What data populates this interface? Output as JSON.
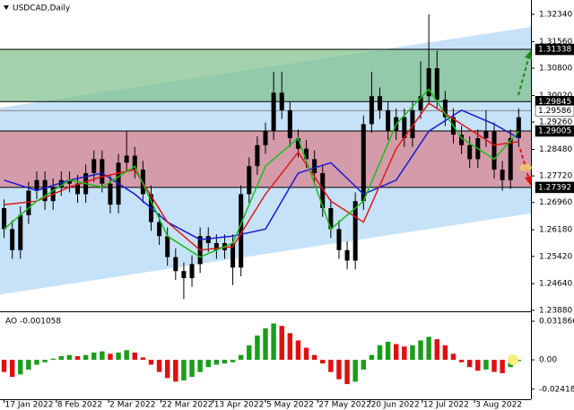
{
  "chart_data": [
    {
      "type": "candlestick",
      "title": "USDCAD,Daily",
      "x": [
        0,
        1,
        2,
        3,
        4,
        5,
        6,
        7,
        8,
        9,
        10,
        11,
        12,
        13,
        14,
        15,
        16,
        17,
        18,
        19,
        20,
        21,
        22,
        23,
        24,
        25,
        26,
        27,
        28,
        29,
        30,
        31,
        32,
        33,
        34,
        35,
        36,
        37,
        38,
        39,
        40,
        41,
        42,
        43,
        44,
        45,
        46,
        47,
        48,
        49,
        50,
        51,
        52,
        53,
        54,
        55,
        56,
        57,
        58,
        59,
        60,
        61,
        62,
        63
      ],
      "open": [
        1.268,
        1.262,
        1.256,
        1.266,
        1.273,
        1.276,
        1.27,
        1.274,
        1.276,
        1.275,
        1.272,
        1.278,
        1.282,
        1.275,
        1.269,
        1.281,
        1.283,
        1.279,
        1.272,
        1.264,
        1.26,
        1.254,
        1.25,
        1.248,
        1.252,
        1.26,
        1.258,
        1.256,
        1.258,
        1.251,
        1.272,
        1.28,
        1.286,
        1.29,
        1.301,
        1.296,
        1.288,
        1.285,
        1.282,
        1.278,
        1.268,
        1.262,
        1.256,
        1.253,
        1.27,
        1.292,
        1.3,
        1.296,
        1.29,
        1.294,
        1.288,
        1.296,
        1.3,
        1.308,
        1.299,
        1.294,
        1.289,
        1.286,
        1.282,
        1.288,
        1.29,
        1.279,
        1.276,
        1.288
      ],
      "high": [
        1.2705,
        1.2645,
        1.2685,
        1.2755,
        1.2785,
        1.2785,
        1.2765,
        1.2785,
        1.2785,
        1.2775,
        1.2805,
        1.2845,
        1.2845,
        1.2775,
        1.2835,
        1.29,
        1.2855,
        1.2815,
        1.2745,
        1.2665,
        1.2625,
        1.2565,
        1.2525,
        1.2545,
        1.2625,
        1.2625,
        1.2605,
        1.2605,
        1.2605,
        1.2745,
        1.2825,
        1.2885,
        1.2925,
        1.307,
        1.307,
        1.2985,
        1.2905,
        1.2875,
        1.2845,
        1.2805,
        1.2705,
        1.2645,
        1.2585,
        1.2725,
        1.2945,
        1.307,
        1.3025,
        1.2985,
        1.2965,
        1.2965,
        1.2985,
        1.31,
        1.3234,
        1.313,
        1.3015,
        1.2965,
        1.2915,
        1.2885,
        1.2905,
        1.296,
        1.2925,
        1.2815,
        1.2905,
        1.2965
      ],
      "low": [
        1.2595,
        1.2535,
        1.2535,
        1.2635,
        1.2705,
        1.2675,
        1.2675,
        1.2715,
        1.2725,
        1.2695,
        1.2695,
        1.2755,
        1.2725,
        1.2665,
        1.2665,
        1.2785,
        1.2765,
        1.2695,
        1.2615,
        1.2575,
        1.2515,
        1.2475,
        1.242,
        1.2455,
        1.2495,
        1.2555,
        1.2535,
        1.2535,
        1.246,
        1.2485,
        1.2695,
        1.2775,
        1.2835,
        1.2875,
        1.2935,
        1.2855,
        1.2825,
        1.2795,
        1.2755,
        1.2655,
        1.2595,
        1.2535,
        1.2505,
        1.2505,
        1.2675,
        1.2895,
        1.2935,
        1.2875,
        1.2875,
        1.2855,
        1.2855,
        1.2935,
        1.2975,
        1.2965,
        1.2915,
        1.2865,
        1.2835,
        1.2795,
        1.2795,
        1.2855,
        1.2765,
        1.273,
        1.2735,
        1.2855
      ],
      "close": [
        1.262,
        1.256,
        1.266,
        1.273,
        1.276,
        1.27,
        1.274,
        1.276,
        1.275,
        1.272,
        1.278,
        1.282,
        1.275,
        1.269,
        1.281,
        1.283,
        1.279,
        1.272,
        1.264,
        1.26,
        1.254,
        1.25,
        1.248,
        1.252,
        1.26,
        1.258,
        1.256,
        1.258,
        1.251,
        1.272,
        1.28,
        1.286,
        1.29,
        1.301,
        1.296,
        1.288,
        1.285,
        1.282,
        1.278,
        1.268,
        1.262,
        1.256,
        1.253,
        1.27,
        1.292,
        1.3,
        1.296,
        1.29,
        1.294,
        1.288,
        1.296,
        1.3,
        1.308,
        1.299,
        1.294,
        1.289,
        1.286,
        1.282,
        1.288,
        1.29,
        1.279,
        1.276,
        1.288,
        1.294
      ],
      "candle_color": "#000000",
      "lines": [
        {
          "color": "#1a1ad0",
          "x": [
            0,
            4,
            8,
            12,
            16,
            20,
            24,
            28,
            32,
            36,
            40,
            44,
            48,
            52,
            56,
            60,
            63
          ],
          "values": [
            1.276,
            1.273,
            1.276,
            1.278,
            1.272,
            1.264,
            1.259,
            1.26,
            1.262,
            1.278,
            1.281,
            1.272,
            1.276,
            1.29,
            1.296,
            1.292,
            1.288
          ]
        },
        {
          "color": "#e01818",
          "x": [
            0,
            4,
            8,
            12,
            16,
            20,
            24,
            28,
            32,
            36,
            40,
            44,
            48,
            52,
            56,
            60,
            63
          ],
          "values": [
            1.269,
            1.27,
            1.274,
            1.277,
            1.279,
            1.264,
            1.256,
            1.257,
            1.272,
            1.284,
            1.27,
            1.264,
            1.285,
            1.298,
            1.292,
            1.286,
            1.287
          ]
        },
        {
          "color": "#18c018",
          "x": [
            0,
            4,
            8,
            12,
            16,
            20,
            24,
            28,
            32,
            36,
            40,
            44,
            48,
            52,
            56,
            60,
            63
          ],
          "values": [
            1.262,
            1.27,
            1.276,
            1.274,
            1.28,
            1.26,
            1.254,
            1.258,
            1.28,
            1.288,
            1.262,
            1.27,
            1.292,
            1.302,
            1.288,
            1.282,
            1.29
          ]
        }
      ],
      "levels": [
        {
          "value": 1.31338,
          "style": "dark"
        },
        {
          "value": 1.29845,
          "style": "dark"
        },
        {
          "value": 1.29586,
          "style": "light"
        },
        {
          "value": 1.29005,
          "style": "dark"
        },
        {
          "value": 1.27392,
          "style": "dark"
        }
      ],
      "zone_colors": [
        "#7fc08c",
        "#d97f8e"
      ],
      "channel": {
        "upper": [
          1.2967,
          1.3198
        ],
        "lower": [
          1.2433,
          1.2665
        ],
        "color": "#c6e2f8"
      },
      "xlim": [
        -0.5,
        64.5
      ],
      "ylim": [
        1.2385,
        1.3275
      ],
      "yticks": [
        {
          "value": 1.3234,
          "label": "1.32340"
        },
        {
          "value": 1.3156,
          "label": "1.31560"
        },
        {
          "value": 1.308,
          "label": "1.30800"
        },
        {
          "value": 1.3002,
          "label": "1.30020"
        },
        {
          "value": 1.2926,
          "label": "1.29260"
        },
        {
          "value": 1.2848,
          "label": "1.28480"
        },
        {
          "value": 1.2772,
          "label": "1.27720"
        },
        {
          "value": 1.2696,
          "label": "1.26960"
        },
        {
          "value": 1.2618,
          "label": "1.26180"
        },
        {
          "value": 1.2542,
          "label": "1.25420"
        },
        {
          "value": 1.2464,
          "label": "1.24640"
        },
        {
          "value": 1.2388,
          "label": "1.23880"
        }
      ]
    },
    {
      "type": "bar",
      "title": "AO -0.001058",
      "x": [
        0,
        1,
        2,
        3,
        4,
        5,
        6,
        7,
        8,
        9,
        10,
        11,
        12,
        13,
        14,
        15,
        16,
        17,
        18,
        19,
        20,
        21,
        22,
        23,
        24,
        25,
        26,
        27,
        28,
        29,
        30,
        31,
        32,
        33,
        34,
        35,
        36,
        37,
        38,
        39,
        40,
        41,
        42,
        43,
        44,
        45,
        46,
        47,
        48,
        49,
        50,
        51,
        52,
        53,
        54,
        55,
        56,
        57,
        58,
        59,
        60,
        61,
        62,
        63
      ],
      "values": [
        -0.01,
        -0.014,
        -0.012,
        -0.008,
        -0.004,
        -0.002,
        0.001,
        0.003,
        0.004,
        0.003,
        0.004,
        0.006,
        0.007,
        0.005,
        0.006,
        0.008,
        0.006,
        0.002,
        -0.004,
        -0.01,
        -0.015,
        -0.018,
        -0.017,
        -0.014,
        -0.01,
        -0.006,
        -0.004,
        -0.003,
        -0.002,
        0.004,
        0.012,
        0.02,
        0.026,
        0.03,
        0.028,
        0.022,
        0.016,
        0.01,
        0.004,
        -0.003,
        -0.01,
        -0.016,
        -0.02,
        -0.018,
        -0.008,
        0.004,
        0.012,
        0.015,
        0.013,
        0.011,
        0.012,
        0.016,
        0.019,
        0.017,
        0.012,
        0.005,
        -0.002,
        -0.006,
        -0.009,
        -0.008,
        -0.01,
        -0.011,
        -0.006,
        -0.001058
      ],
      "up_color": "#1a9e1a",
      "down_color": "#e01010",
      "xlim": [
        -0.5,
        64.5
      ],
      "ylim": [
        -0.0325,
        0.0378
      ],
      "yticks": [
        0.031866,
        {
          "value": 0,
          "label": "0.00"
        },
        -0.024186
      ],
      "xticks": [
        {
          "value": 0,
          "label": "17 Jan 2022"
        },
        {
          "value": 6.4,
          "label": "8 Feb 2022"
        },
        {
          "value": 12.8,
          "label": "2 Mar 2022"
        },
        {
          "value": 19.2,
          "label": "22 Mar 2022"
        },
        {
          "value": 25.6,
          "label": "13 Apr 2022"
        },
        {
          "value": 32,
          "label": "5 May 2022"
        },
        {
          "value": 38.4,
          "label": "27 May 2022"
        },
        {
          "value": 44.8,
          "label": "20 Jun 2022"
        },
        {
          "value": 51.2,
          "label": "12 Jul 2022"
        },
        {
          "value": 57.6,
          "label": "3 Aug 2022"
        }
      ]
    }
  ]
}
